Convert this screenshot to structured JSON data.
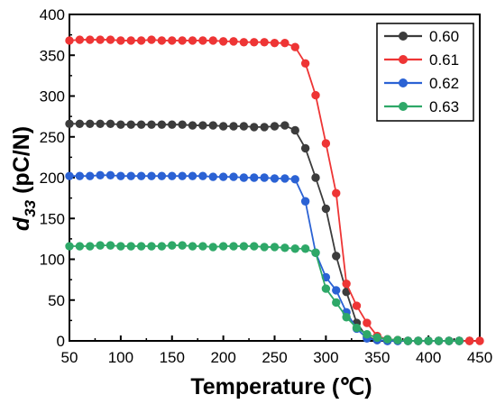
{
  "chart_data": {
    "type": "line",
    "xlabel": "Temperature (℃)",
    "ylabel_main": "d",
    "ylabel_sub": "33",
    "ylabel_rest": " (pC/N)",
    "xlim": [
      50,
      450
    ],
    "ylim": [
      0,
      400
    ],
    "xticks": [
      50,
      100,
      150,
      200,
      250,
      300,
      350,
      400,
      450
    ],
    "yticks": [
      0,
      50,
      100,
      150,
      200,
      250,
      300,
      350,
      400
    ],
    "grid": false,
    "legend_position": "top-right",
    "series": [
      {
        "name": "0.60",
        "color": "#3c3c3c",
        "points": [
          [
            50,
            266
          ],
          [
            60,
            266
          ],
          [
            70,
            266
          ],
          [
            80,
            266
          ],
          [
            90,
            266
          ],
          [
            100,
            265
          ],
          [
            110,
            265
          ],
          [
            120,
            265
          ],
          [
            130,
            265
          ],
          [
            140,
            265
          ],
          [
            150,
            265
          ],
          [
            160,
            265
          ],
          [
            170,
            264
          ],
          [
            180,
            264
          ],
          [
            190,
            264
          ],
          [
            200,
            263
          ],
          [
            210,
            263
          ],
          [
            220,
            263
          ],
          [
            230,
            262
          ],
          [
            240,
            262
          ],
          [
            250,
            263
          ],
          [
            260,
            264
          ],
          [
            270,
            258
          ],
          [
            280,
            236
          ],
          [
            290,
            200
          ],
          [
            300,
            162
          ],
          [
            310,
            104
          ],
          [
            320,
            60
          ],
          [
            330,
            22
          ],
          [
            340,
            5
          ],
          [
            350,
            1
          ],
          [
            360,
            0
          ],
          [
            370,
            0
          ],
          [
            380,
            0
          ],
          [
            390,
            0
          ],
          [
            400,
            0
          ],
          [
            410,
            0
          ],
          [
            420,
            0
          ],
          [
            430,
            0
          ],
          [
            440,
            0
          ]
        ]
      },
      {
        "name": "0.61",
        "color": "#ee3535",
        "points": [
          [
            50,
            368
          ],
          [
            60,
            369
          ],
          [
            70,
            369
          ],
          [
            80,
            369
          ],
          [
            90,
            369
          ],
          [
            100,
            368
          ],
          [
            110,
            368
          ],
          [
            120,
            368
          ],
          [
            130,
            369
          ],
          [
            140,
            368
          ],
          [
            150,
            368
          ],
          [
            160,
            368
          ],
          [
            170,
            368
          ],
          [
            180,
            368
          ],
          [
            190,
            368
          ],
          [
            200,
            367
          ],
          [
            210,
            367
          ],
          [
            220,
            366
          ],
          [
            230,
            366
          ],
          [
            240,
            366
          ],
          [
            250,
            365
          ],
          [
            260,
            365
          ],
          [
            270,
            360
          ],
          [
            280,
            340
          ],
          [
            290,
            301
          ],
          [
            300,
            242
          ],
          [
            310,
            181
          ],
          [
            320,
            70
          ],
          [
            330,
            43
          ],
          [
            340,
            22
          ],
          [
            350,
            6
          ],
          [
            360,
            2
          ],
          [
            370,
            1
          ],
          [
            380,
            0
          ],
          [
            390,
            0
          ],
          [
            400,
            0
          ],
          [
            410,
            0
          ],
          [
            420,
            0
          ],
          [
            430,
            0
          ],
          [
            440,
            0
          ],
          [
            450,
            0
          ]
        ]
      },
      {
        "name": "0.62",
        "color": "#2b62d4",
        "points": [
          [
            50,
            202
          ],
          [
            60,
            202
          ],
          [
            70,
            202
          ],
          [
            80,
            203
          ],
          [
            90,
            203
          ],
          [
            100,
            202
          ],
          [
            110,
            202
          ],
          [
            120,
            202
          ],
          [
            130,
            202
          ],
          [
            140,
            202
          ],
          [
            150,
            202
          ],
          [
            160,
            202
          ],
          [
            170,
            202
          ],
          [
            180,
            202
          ],
          [
            190,
            201
          ],
          [
            200,
            201
          ],
          [
            210,
            201
          ],
          [
            220,
            200
          ],
          [
            230,
            200
          ],
          [
            240,
            200
          ],
          [
            250,
            199
          ],
          [
            260,
            199
          ],
          [
            270,
            198
          ],
          [
            280,
            171
          ],
          [
            290,
            108
          ],
          [
            300,
            78
          ],
          [
            310,
            62
          ],
          [
            320,
            35
          ],
          [
            330,
            15
          ],
          [
            340,
            3
          ],
          [
            350,
            1
          ],
          [
            360,
            0
          ],
          [
            370,
            0
          ],
          [
            380,
            0
          ],
          [
            390,
            0
          ],
          [
            400,
            0
          ],
          [
            410,
            0
          ],
          [
            420,
            0
          ],
          [
            430,
            0
          ]
        ]
      },
      {
        "name": "0.63",
        "color": "#2ea868",
        "points": [
          [
            50,
            116
          ],
          [
            60,
            116
          ],
          [
            70,
            116
          ],
          [
            80,
            117
          ],
          [
            90,
            117
          ],
          [
            100,
            116
          ],
          [
            110,
            116
          ],
          [
            120,
            116
          ],
          [
            130,
            116
          ],
          [
            140,
            116
          ],
          [
            150,
            117
          ],
          [
            160,
            117
          ],
          [
            170,
            116
          ],
          [
            180,
            116
          ],
          [
            190,
            115
          ],
          [
            200,
            116
          ],
          [
            210,
            116
          ],
          [
            220,
            116
          ],
          [
            230,
            116
          ],
          [
            240,
            115
          ],
          [
            250,
            115
          ],
          [
            260,
            114
          ],
          [
            270,
            113
          ],
          [
            280,
            113
          ],
          [
            290,
            108
          ],
          [
            300,
            64
          ],
          [
            310,
            47
          ],
          [
            320,
            29
          ],
          [
            330,
            16
          ],
          [
            340,
            8
          ],
          [
            350,
            4
          ],
          [
            360,
            2
          ],
          [
            370,
            1
          ],
          [
            380,
            0
          ],
          [
            390,
            0
          ],
          [
            400,
            0
          ],
          [
            410,
            0
          ],
          [
            420,
            0
          ],
          [
            430,
            0
          ]
        ]
      }
    ]
  }
}
